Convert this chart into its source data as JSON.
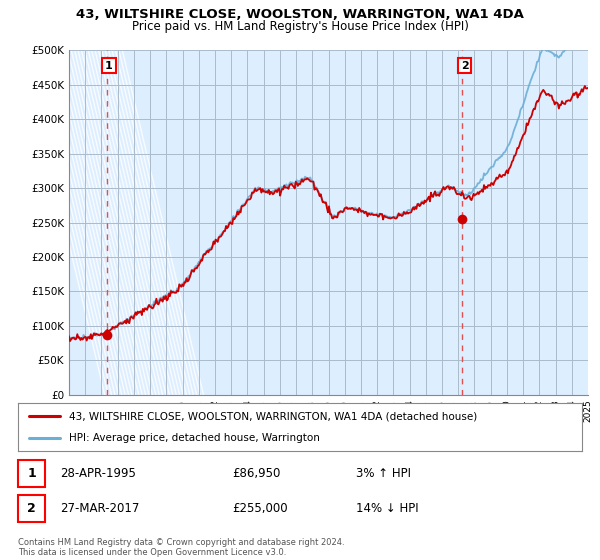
{
  "title_line1": "43, WILTSHIRE CLOSE, WOOLSTON, WARRINGTON, WA1 4DA",
  "title_line2": "Price paid vs. HM Land Registry's House Price Index (HPI)",
  "ylim": [
    0,
    500000
  ],
  "yticks": [
    0,
    50000,
    100000,
    150000,
    200000,
    250000,
    300000,
    350000,
    400000,
    450000,
    500000
  ],
  "ytick_labels": [
    "£0",
    "£50K",
    "£100K",
    "£150K",
    "£200K",
    "£250K",
    "£300K",
    "£350K",
    "£400K",
    "£450K",
    "£500K"
  ],
  "sale1_date": 1995.32,
  "sale1_price": 86950,
  "sale2_date": 2017.24,
  "sale2_price": 255000,
  "hpi_color": "#6baed6",
  "sale_color": "#cc0000",
  "dashed_color": "#e05050",
  "plot_bg_color": "#ddeeff",
  "grid_color": "#aabbcc",
  "legend_line1": "43, WILTSHIRE CLOSE, WOOLSTON, WARRINGTON, WA1 4DA (detached house)",
  "legend_line2": "HPI: Average price, detached house, Warrington",
  "xmin": 1993,
  "xmax": 2025,
  "footer": "Contains HM Land Registry data © Crown copyright and database right 2024.\nThis data is licensed under the Open Government Licence v3.0."
}
